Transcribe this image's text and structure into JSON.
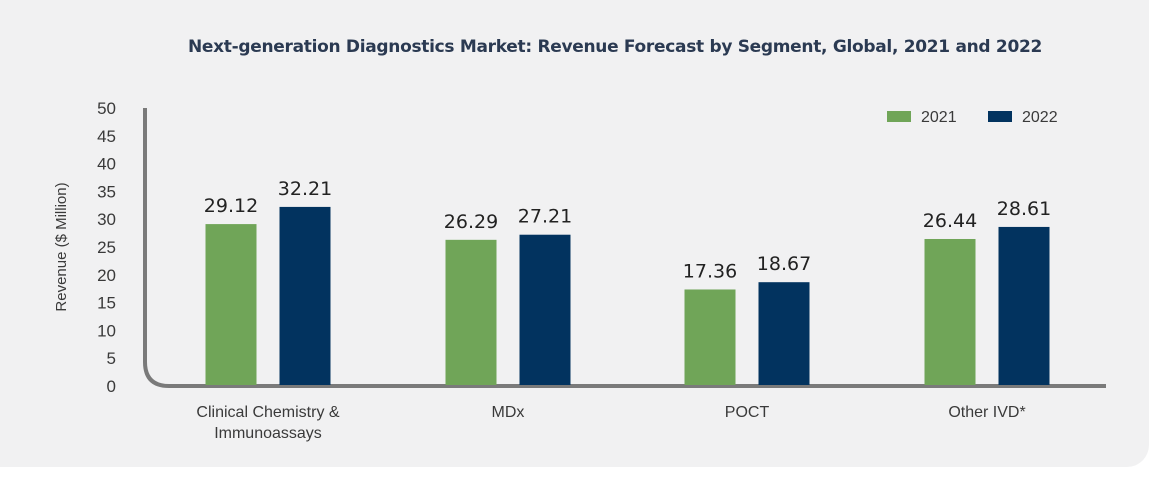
{
  "chart_data": {
    "type": "bar",
    "title": "Next-generation Diagnostics Market: Revenue Forecast by Segment, Global, 2021 and 2022",
    "ylabel": "Revenue ($ Million)",
    "xlabel": "",
    "ylim": [
      0,
      50
    ],
    "yticks": [
      0,
      5,
      10,
      15,
      20,
      25,
      30,
      35,
      40,
      45,
      50
    ],
    "grid": false,
    "legend_position": "top-right",
    "categories": [
      [
        "Clinical Chemistry &",
        "Immunoassays"
      ],
      [
        "MDx"
      ],
      [
        "POCT"
      ],
      [
        "Other IVD*"
      ]
    ],
    "series": [
      {
        "name": "2021",
        "color": "#70a558",
        "values": [
          29.12,
          26.29,
          17.36,
          26.44
        ]
      },
      {
        "name": "2022",
        "color": "#02335f",
        "values": [
          32.21,
          27.21,
          18.67,
          28.61
        ]
      }
    ]
  }
}
